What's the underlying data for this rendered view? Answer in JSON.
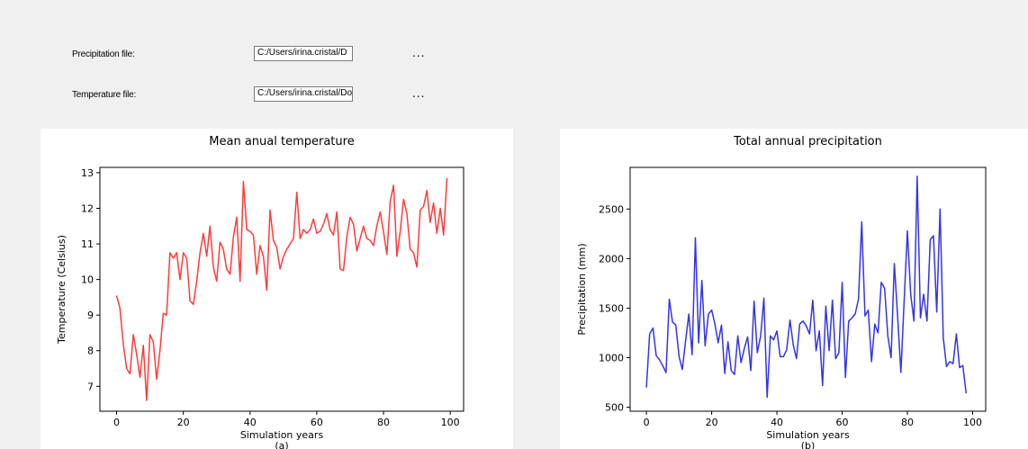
{
  "form": {
    "precipitation_label": "Precipitation file:",
    "precipitation_value": "C:/Users/irina.cristal/D",
    "temperature_label": "Temperature file:",
    "temperature_value": "C:/Users/irina.cristal/Do",
    "browse_label": "..."
  },
  "chart_data": [
    {
      "type": "line",
      "title": "Mean anual temperature",
      "xlabel": "Simulation years",
      "ylabel": "Temperature (Celsius)",
      "caption": "(a)",
      "color": "#ff3b3b",
      "xlim": [
        -5,
        104
      ],
      "ylim": [
        6.3,
        13.15
      ],
      "xticks": [
        0,
        20,
        40,
        60,
        80,
        100
      ],
      "yticks": [
        7,
        8,
        9,
        10,
        11,
        12,
        13
      ],
      "x_start": 0,
      "values": [
        9.55,
        9.2,
        8.2,
        7.5,
        7.35,
        8.45,
        7.9,
        7.25,
        8.15,
        6.6,
        8.45,
        8.25,
        7.2,
        8.0,
        9.05,
        9.0,
        10.75,
        10.6,
        10.75,
        10.0,
        10.75,
        10.6,
        9.4,
        9.3,
        9.95,
        10.75,
        11.3,
        10.65,
        11.5,
        10.35,
        9.95,
        11.05,
        10.85,
        10.3,
        10.15,
        11.2,
        11.75,
        9.95,
        12.75,
        11.4,
        11.35,
        11.25,
        10.15,
        10.95,
        10.65,
        9.7,
        11.95,
        11.1,
        10.9,
        10.3,
        10.65,
        10.85,
        11.0,
        11.15,
        12.45,
        11.15,
        11.4,
        11.3,
        11.4,
        11.7,
        11.3,
        11.35,
        11.55,
        11.85,
        11.4,
        11.25,
        11.9,
        10.3,
        10.25,
        11.2,
        11.75,
        11.55,
        10.8,
        11.15,
        11.5,
        11.15,
        11.1,
        10.95,
        11.5,
        11.9,
        11.35,
        10.7,
        12.2,
        12.65,
        10.65,
        11.35,
        12.25,
        11.85,
        10.85,
        10.75,
        10.35,
        11.95,
        12.05,
        12.5,
        11.6,
        12.15,
        11.3,
        12.0,
        11.25,
        12.85
      ]
    },
    {
      "type": "line",
      "title": "Total annual precipitation",
      "xlabel": "Simulation years",
      "ylabel": "Precipitation (mm)",
      "caption": "(b)",
      "color": "#3434e6",
      "xlim": [
        -5,
        104
      ],
      "ylim": [
        460,
        2920
      ],
      "xticks": [
        0,
        20,
        40,
        60,
        80,
        100
      ],
      "yticks": [
        500,
        1000,
        1500,
        2000,
        2500
      ],
      "x_start": 0,
      "values": [
        700,
        1240,
        1300,
        1020,
        980,
        920,
        850,
        1590,
        1360,
        1330,
        1010,
        880,
        1170,
        1440,
        1030,
        2210,
        1150,
        1780,
        1120,
        1440,
        1480,
        1340,
        1150,
        1330,
        840,
        1160,
        870,
        830,
        1220,
        950,
        1090,
        1210,
        870,
        1570,
        1050,
        1220,
        1600,
        600,
        1220,
        1180,
        1270,
        1010,
        1010,
        1080,
        1380,
        1130,
        990,
        1340,
        1370,
        1320,
        1240,
        1580,
        1070,
        1270,
        720,
        1520,
        1070,
        1580,
        990,
        1050,
        1760,
        800,
        1370,
        1400,
        1440,
        1590,
        2370,
        1420,
        1480,
        960,
        1340,
        1250,
        1760,
        1700,
        1220,
        1000,
        1950,
        1410,
        850,
        1570,
        2280,
        1640,
        1370,
        2830,
        1400,
        1640,
        1370,
        2190,
        2230,
        1460,
        2500,
        1200,
        910,
        960,
        940,
        1240,
        900,
        920,
        640
      ]
    }
  ]
}
